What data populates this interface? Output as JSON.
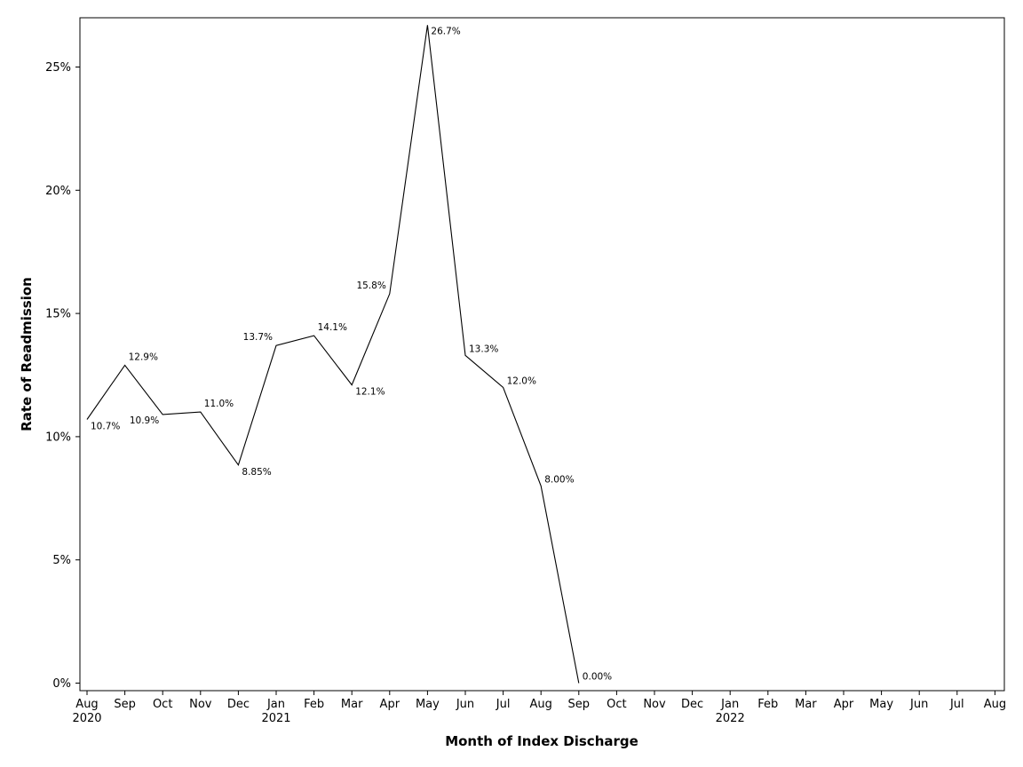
{
  "chart_data": {
    "type": "line",
    "xlabel": "Month of Index Discharge",
    "ylabel": "Rate of Readmission",
    "ylim": [
      0,
      0.27
    ],
    "y_ticks": [
      {
        "value": 0,
        "label": "0%"
      },
      {
        "value": 0.05,
        "label": "5%"
      },
      {
        "value": 0.1,
        "label": "10%"
      },
      {
        "value": 0.15,
        "label": "15%"
      },
      {
        "value": 0.2,
        "label": "20%"
      },
      {
        "value": 0.25,
        "label": "25%"
      }
    ],
    "x_ticks": [
      {
        "month": "Aug",
        "year": "2020"
      },
      {
        "month": "Sep",
        "year": ""
      },
      {
        "month": "Oct",
        "year": ""
      },
      {
        "month": "Nov",
        "year": ""
      },
      {
        "month": "Dec",
        "year": ""
      },
      {
        "month": "Jan",
        "year": "2021"
      },
      {
        "month": "Feb",
        "year": ""
      },
      {
        "month": "Mar",
        "year": ""
      },
      {
        "month": "Apr",
        "year": ""
      },
      {
        "month": "May",
        "year": ""
      },
      {
        "month": "Jun",
        "year": ""
      },
      {
        "month": "Jul",
        "year": ""
      },
      {
        "month": "Aug",
        "year": ""
      },
      {
        "month": "Sep",
        "year": ""
      },
      {
        "month": "Oct",
        "year": ""
      },
      {
        "month": "Nov",
        "year": ""
      },
      {
        "month": "Dec",
        "year": ""
      },
      {
        "month": "Jan",
        "year": "2022"
      },
      {
        "month": "Feb",
        "year": ""
      },
      {
        "month": "Mar",
        "year": ""
      },
      {
        "month": "Apr",
        "year": ""
      },
      {
        "month": "May",
        "year": ""
      },
      {
        "month": "Jun",
        "year": ""
      },
      {
        "month": "Jul",
        "year": ""
      },
      {
        "month": "Aug",
        "year": ""
      }
    ],
    "series": [
      {
        "points": [
          {
            "x": "2020-08",
            "y": 0.107,
            "label": "10.7%"
          },
          {
            "x": "2020-09",
            "y": 0.129,
            "label": "12.9%"
          },
          {
            "x": "2020-10",
            "y": 0.109,
            "label": "10.9%"
          },
          {
            "x": "2020-11",
            "y": 0.11,
            "label": "11.0%"
          },
          {
            "x": "2020-12",
            "y": 0.0885,
            "label": "8.85%"
          },
          {
            "x": "2021-01",
            "y": 0.137,
            "label": "13.7%"
          },
          {
            "x": "2021-02",
            "y": 0.141,
            "label": "14.1%"
          },
          {
            "x": "2021-03",
            "y": 0.121,
            "label": "12.1%"
          },
          {
            "x": "2021-04",
            "y": 0.158,
            "label": "15.8%"
          },
          {
            "x": "2021-05",
            "y": 0.267,
            "label": "26.7%"
          },
          {
            "x": "2021-06",
            "y": 0.133,
            "label": "13.3%"
          },
          {
            "x": "2021-07",
            "y": 0.12,
            "label": "12.0%"
          },
          {
            "x": "2021-08",
            "y": 0.08,
            "label": "8.00%"
          },
          {
            "x": "2021-09",
            "y": 0.0,
            "label": "0.00%"
          }
        ]
      }
    ],
    "grid": false,
    "legend": "none"
  }
}
